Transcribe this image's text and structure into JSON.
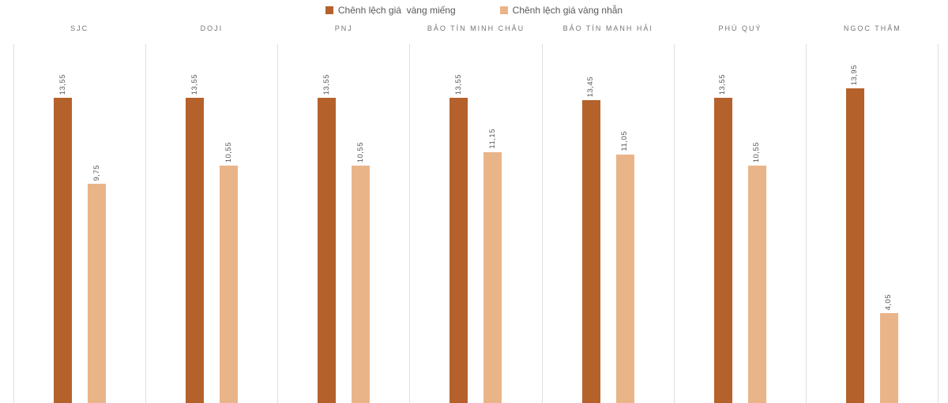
{
  "chart_data": {
    "type": "bar",
    "title": "",
    "xlabel": "",
    "ylabel": "",
    "y_axis_visible": false,
    "value_labels_rotated": true,
    "legend_position": "top-center",
    "grid": "vertical category separator lines only",
    "ylim": [
      0,
      14
    ],
    "categories": [
      "SJC",
      "DOJI",
      "PNJ",
      "BẢO TÍN MINH CHÂU",
      "BẢO TÍN MẠNH HẢI",
      "PHÚ QUÝ",
      "NGỌC THẨM"
    ],
    "series": [
      {
        "name": "Chênh lệch giá  vàng miếng",
        "color": "#B5612C",
        "values": [
          13.55,
          13.55,
          13.55,
          13.55,
          13.45,
          13.55,
          13.95
        ],
        "labels": [
          "13,55",
          "13,55",
          "13,55",
          "13,55",
          "13,45",
          "13,55",
          "13,95"
        ]
      },
      {
        "name": "Chênh lệch giá vàng nhẫn",
        "color": "#EAB489",
        "values": [
          9.75,
          10.55,
          10.55,
          11.15,
          11.05,
          10.55,
          4.05
        ],
        "labels": [
          "9,75",
          "10,55",
          "10,55",
          "11,15",
          "11,05",
          "10,55",
          "4,05"
        ]
      }
    ],
    "style": {
      "background": "#FFFFFF",
      "gridline_color": "#DEDEDE",
      "category_label_color": "#757575",
      "value_label_color": "#595959",
      "legend_text_color": "#595959"
    }
  }
}
